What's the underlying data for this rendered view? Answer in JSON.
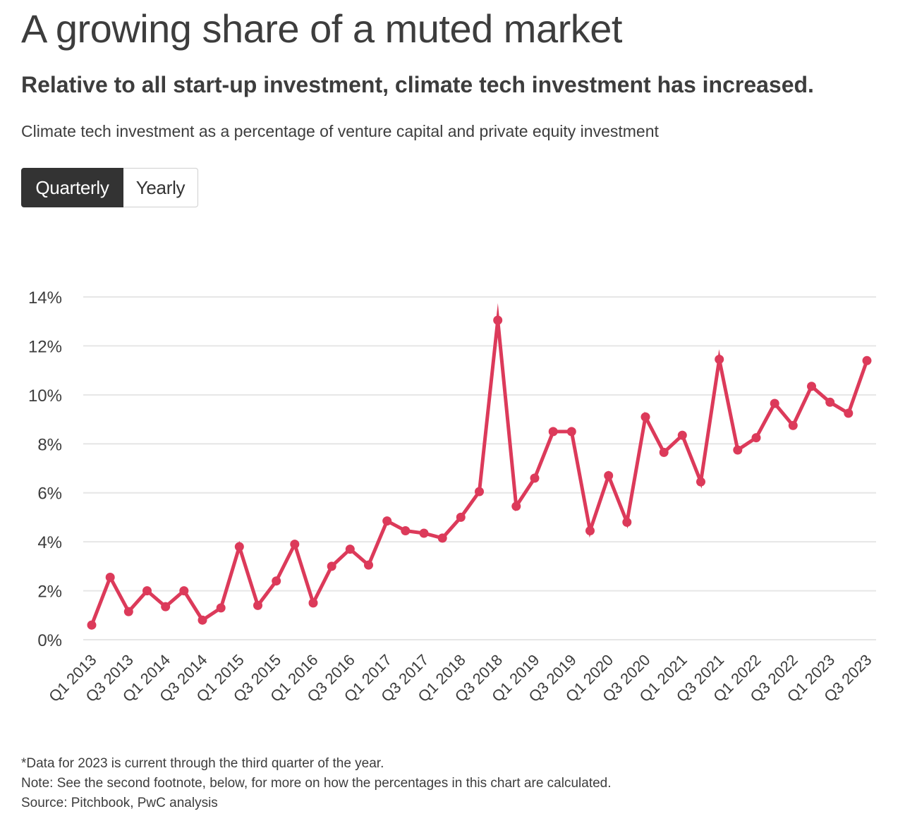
{
  "header": {
    "title": "A growing share of a muted market",
    "subtitle": "Relative to all start-up investment, climate tech investment has increased.",
    "caption": "Climate tech investment as a percentage of venture capital and private equity investment"
  },
  "toggle": {
    "options": [
      "Quarterly",
      "Yearly"
    ],
    "selected": "Quarterly"
  },
  "colors": {
    "line": "#dc3a5a",
    "grid": "#e6e6e6",
    "toggle_active_bg": "#333333"
  },
  "chart_data": {
    "type": "line",
    "title": "",
    "xlabel": "",
    "ylabel": "",
    "ylim": [
      0,
      14
    ],
    "yticks": [
      "0%",
      "2%",
      "4%",
      "6%",
      "8%",
      "10%",
      "12%",
      "14%"
    ],
    "y_tick_values": [
      0,
      2,
      4,
      6,
      8,
      10,
      12,
      14
    ],
    "grid": true,
    "x": [
      "Q1 2013",
      "Q2 2013",
      "Q3 2013",
      "Q4 2013",
      "Q1 2014",
      "Q2 2014",
      "Q3 2014",
      "Q4 2014",
      "Q1 2015",
      "Q2 2015",
      "Q3 2015",
      "Q4 2015",
      "Q1 2016",
      "Q2 2016",
      "Q3 2016",
      "Q4 2016",
      "Q1 2017",
      "Q2 2017",
      "Q3 2017",
      "Q4 2017",
      "Q1 2018",
      "Q2 2018",
      "Q3 2018",
      "Q4 2018",
      "Q1 2019",
      "Q2 2019",
      "Q3 2019",
      "Q4 2019",
      "Q1 2020",
      "Q2 2020",
      "Q3 2020",
      "Q4 2020",
      "Q1 2021",
      "Q2 2021",
      "Q3 2021",
      "Q4 2021",
      "Q1 2022",
      "Q2 2022",
      "Q3 2022",
      "Q4 2022",
      "Q1 2023",
      "Q2 2023",
      "Q3 2023"
    ],
    "x_tick_labels": [
      "Q1 2013",
      "Q3 2013",
      "Q1 2014",
      "Q3 2014",
      "Q1 2015",
      "Q3 2015",
      "Q1 2016",
      "Q3 2016",
      "Q1 2017",
      "Q3 2017",
      "Q1 2018",
      "Q3 2018",
      "Q1 2019",
      "Q3 2019",
      "Q1 2020",
      "Q3 2020",
      "Q1 2021",
      "Q3 2021",
      "Q1 2022",
      "Q3 2022",
      "Q1 2023",
      "Q3 2023"
    ],
    "series": [
      {
        "values": [
          0.6,
          2.55,
          1.15,
          2.0,
          1.35,
          2.0,
          0.8,
          1.3,
          3.8,
          1.4,
          2.4,
          3.9,
          1.5,
          3.0,
          3.7,
          3.05,
          4.85,
          4.45,
          4.35,
          4.15,
          5.0,
          6.05,
          13.05,
          5.45,
          6.6,
          8.5,
          8.5,
          4.45,
          6.7,
          4.8,
          9.1,
          7.65,
          8.35,
          6.45,
          11.45,
          7.75,
          8.25,
          9.65,
          8.75,
          10.35,
          9.7,
          9.25,
          11.4
        ]
      }
    ]
  },
  "footnotes": [
    "*Data for 2023 is current through the third quarter of the year.",
    "Note: See the second footnote, below, for more on how the percentages in this chart are calculated.",
    "Source: Pitchbook, PwC analysis"
  ]
}
